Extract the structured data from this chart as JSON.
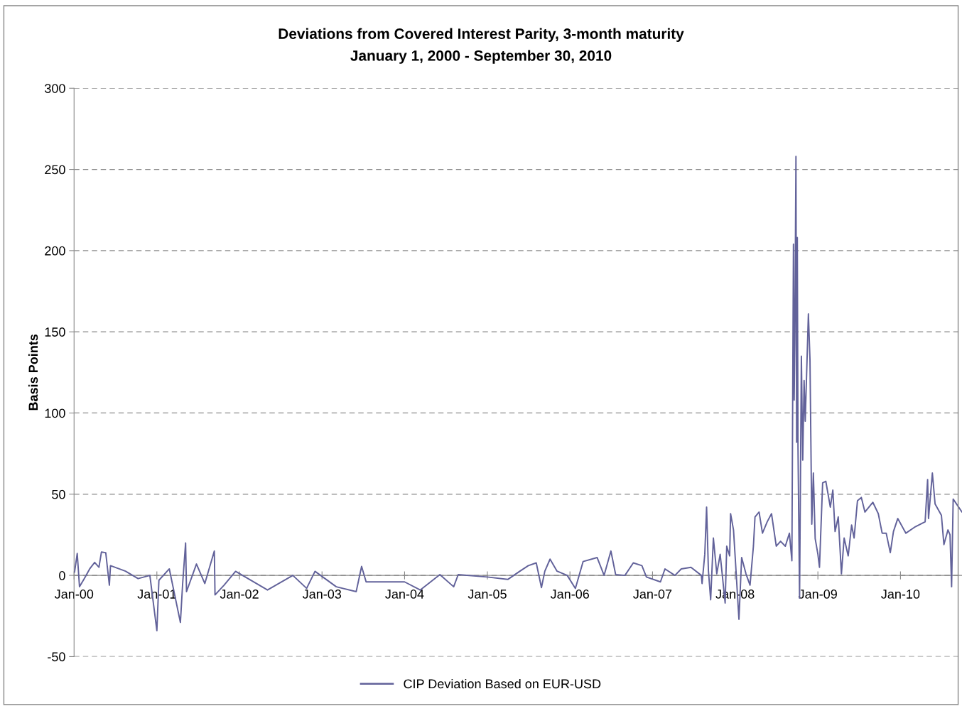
{
  "chart_data": {
    "type": "line",
    "title": "Deviations from Covered Interest Parity, 3-month maturity",
    "subtitle": "January 1, 2000 - September 30, 2010",
    "ylabel": "Basis Points",
    "xlim": [
      "2000-01-01",
      "2010-09-30"
    ],
    "ylim": [
      -50,
      300
    ],
    "yticks": [
      -50,
      0,
      50,
      100,
      150,
      200,
      250,
      300
    ],
    "xticks": [
      {
        "value": "2000-01-01",
        "label": "Jan-00"
      },
      {
        "value": "2001-01-01",
        "label": "Jan-01"
      },
      {
        "value": "2002-01-01",
        "label": "Jan-02"
      },
      {
        "value": "2003-01-01",
        "label": "Jan-03"
      },
      {
        "value": "2004-01-01",
        "label": "Jan-04"
      },
      {
        "value": "2005-01-01",
        "label": "Jan-05"
      },
      {
        "value": "2006-01-01",
        "label": "Jan-06"
      },
      {
        "value": "2007-01-01",
        "label": "Jan-07"
      },
      {
        "value": "2008-01-01",
        "label": "Jan-08"
      },
      {
        "value": "2009-01-01",
        "label": "Jan-09"
      },
      {
        "value": "2010-01-01",
        "label": "Jan-10"
      }
    ],
    "grid": "y",
    "legend": "bottom",
    "marker": "none",
    "line_style": "solid",
    "x": [
      "2000-01-03",
      "2000-01-15",
      "2000-01-25",
      "2000-02-15",
      "2000-03-10",
      "2000-04-01",
      "2000-04-20",
      "2000-05-01",
      "2000-05-20",
      "2000-06-05",
      "2000-06-10",
      "2000-08-15",
      "2000-10-10",
      "2000-12-01",
      "2001-01-01",
      "2001-01-10",
      "2001-02-25",
      "2001-04-15",
      "2001-04-25",
      "2001-05-08",
      "2001-05-12",
      "2001-06-25",
      "2001-08-01",
      "2001-09-12",
      "2001-09-15",
      "2001-10-25",
      "2001-12-15",
      "2002-05-05",
      "2002-08-25",
      "2002-10-25",
      "2002-12-01",
      "2003-03-05",
      "2003-06-01",
      "2003-06-25",
      "2003-07-15",
      "2003-10-01",
      "2004-01-01",
      "2004-03-10",
      "2004-06-05",
      "2004-08-05",
      "2004-08-25",
      "2005-01-01",
      "2005-04-01",
      "2005-05-25",
      "2005-07-01",
      "2005-08-05",
      "2005-08-28",
      "2005-09-12",
      "2005-10-05",
      "2005-11-05",
      "2005-12-20",
      "2006-01-25",
      "2006-02-28",
      "2006-05-01",
      "2006-06-01",
      "2006-07-01",
      "2006-07-22",
      "2006-09-01",
      "2006-10-08",
      "2006-11-15",
      "2006-12-05",
      "2007-02-05",
      "2007-02-25",
      "2007-04-10",
      "2007-05-08",
      "2007-06-20",
      "2007-08-05",
      "2007-08-08",
      "2007-08-20",
      "2007-08-28",
      "2007-09-05",
      "2007-09-15",
      "2007-09-27",
      "2007-10-12",
      "2007-10-27",
      "2007-11-18",
      "2007-11-25",
      "2007-12-08",
      "2007-12-12",
      "2007-12-25",
      "2008-01-05",
      "2008-01-18",
      "2008-01-30",
      "2008-02-18",
      "2008-03-07",
      "2008-03-22",
      "2008-03-29",
      "2008-04-16",
      "2008-05-01",
      "2008-05-22",
      "2008-06-10",
      "2008-07-01",
      "2008-07-20",
      "2008-08-10",
      "2008-08-28",
      "2008-09-08",
      "2008-09-15",
      "2008-09-18",
      "2008-09-21",
      "2008-09-26",
      "2008-09-29",
      "2008-10-02",
      "2008-10-05",
      "2008-10-12",
      "2008-10-20",
      "2008-10-26",
      "2008-11-01",
      "2008-11-06",
      "2008-11-20",
      "2008-11-27",
      "2008-12-05",
      "2008-12-12",
      "2008-12-20",
      "2009-01-01",
      "2009-01-08",
      "2009-01-22",
      "2009-02-05",
      "2009-02-25",
      "2009-03-08",
      "2009-03-18",
      "2009-04-01",
      "2009-04-15",
      "2009-04-27",
      "2009-05-15",
      "2009-05-30",
      "2009-06-10",
      "2009-06-25",
      "2009-07-12",
      "2009-07-28",
      "2009-09-01",
      "2009-09-25",
      "2009-10-12",
      "2009-10-30",
      "2009-11-17",
      "2009-12-01",
      "2009-12-20",
      "2010-01-25",
      "2010-03-08",
      "2010-04-20",
      "2010-05-01",
      "2010-05-05",
      "2010-05-22",
      "2010-06-03",
      "2010-07-01",
      "2010-07-12",
      "2010-07-30",
      "2010-08-08",
      "2010-08-15",
      "2010-08-22",
      "2010-09-30"
    ],
    "series": [
      {
        "name": "CIP Deviation Based on EUR-USD",
        "color": "#62629a",
        "values": [
          2,
          13.5,
          -7,
          -2,
          4,
          8,
          5,
          14.4,
          14,
          -6,
          6,
          2.6,
          -2,
          0,
          -34,
          -3,
          4,
          -29,
          -5,
          20,
          -10,
          7,
          -5,
          15,
          -12,
          -6,
          2.5,
          -9,
          0,
          -8,
          2.5,
          -7,
          -10,
          5.5,
          -4,
          -4,
          -4,
          -9,
          0.5,
          -7,
          0.5,
          -1,
          -2.5,
          2.6,
          6,
          7.7,
          -7.5,
          2.6,
          10,
          2.6,
          0,
          -8,
          8.5,
          11,
          0,
          15,
          0.5,
          0,
          7.7,
          6,
          -1,
          -4,
          4,
          0,
          4,
          5,
          0,
          -5,
          13,
          42,
          3,
          -15,
          23,
          1,
          13,
          -17,
          18,
          12,
          38,
          28,
          3,
          -27,
          11,
          1,
          -6,
          18,
          36,
          39,
          26,
          33,
          38,
          18,
          21,
          18,
          26,
          9,
          204,
          108,
          143,
          258,
          82,
          208,
          80,
          -14,
          135,
          71,
          120,
          95,
          161,
          133,
          31.5,
          63,
          22.7,
          13,
          5,
          57,
          58,
          42,
          52.5,
          27,
          36,
          1,
          23,
          12,
          31,
          23,
          46,
          48,
          39,
          45,
          38,
          26,
          26,
          14,
          27,
          35,
          26,
          30,
          33,
          59,
          35,
          63,
          44,
          37,
          19,
          28,
          25,
          -7,
          47,
          39
        ]
      }
    ]
  }
}
